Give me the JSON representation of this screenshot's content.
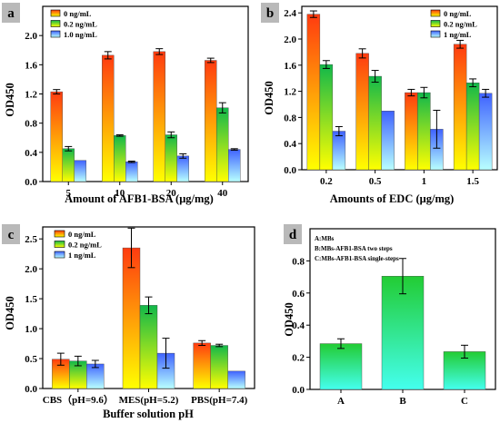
{
  "chart_data": [
    {
      "type": "bar",
      "panel_label": "a",
      "xlabel": "Amount of AFB1-BSA (μg/mg)",
      "ylabel": "OD450",
      "ylim": [
        0,
        2.4
      ],
      "yticks": [
        "0.0",
        "0.4",
        "0.8",
        "1.2",
        "1.6",
        "2.0"
      ],
      "categories": [
        "5",
        "10",
        "20",
        "40"
      ],
      "series": [
        {
          "name": "0 ng/mL",
          "values": [
            1.23,
            1.73,
            1.78,
            1.66
          ],
          "errors": [
            0.03,
            0.05,
            0.04,
            0.03
          ],
          "gradient": [
            "#ff3b10",
            "#ffff00"
          ]
        },
        {
          "name": "0.2 ng/mL",
          "values": [
            0.45,
            0.63,
            0.64,
            1.01
          ],
          "errors": [
            0.03,
            0.01,
            0.04,
            0.07
          ],
          "gradient": [
            "#11b84a",
            "#ffff00"
          ]
        },
        {
          "name": "1.0 ng/mL",
          "values": [
            0.29,
            0.27,
            0.35,
            0.44
          ],
          "errors": [
            0.0,
            0.01,
            0.03,
            0.01
          ],
          "gradient": [
            "#3f62ff",
            "#b8ffff"
          ]
        }
      ],
      "legend": "top-left"
    },
    {
      "type": "bar",
      "panel_label": "b",
      "xlabel": "Amounts of EDC (μg/mg)",
      "ylabel": "OD450",
      "ylim": [
        0,
        2.5
      ],
      "yticks": [
        "0.0",
        "0.4",
        "0.8",
        "1.2",
        "1.6",
        "2.0",
        "2.4"
      ],
      "categories": [
        "0.2",
        "0.5",
        "1",
        "1.5"
      ],
      "series": [
        {
          "name": "0 ng/mL",
          "values": [
            2.38,
            1.78,
            1.18,
            1.92
          ],
          "errors": [
            0.05,
            0.07,
            0.05,
            0.06
          ],
          "gradient": [
            "#ff3b10",
            "#ffff00"
          ]
        },
        {
          "name": "0.2 ng/mL",
          "values": [
            1.61,
            1.43,
            1.18,
            1.33
          ],
          "errors": [
            0.06,
            0.09,
            0.08,
            0.06
          ],
          "gradient": [
            "#11b84a",
            "#ffff00"
          ]
        },
        {
          "name": "1 ng/mL",
          "values": [
            0.59,
            0.9,
            0.62,
            1.17
          ],
          "errors": [
            0.07,
            0.0,
            0.29,
            0.06
          ],
          "gradient": [
            "#3f62ff",
            "#b8ffff"
          ]
        }
      ],
      "legend": "top-right"
    },
    {
      "type": "bar",
      "panel_label": "c",
      "xlabel": "Buffer solution pH",
      "ylabel": "OD450",
      "ylim": [
        0,
        2.7
      ],
      "yticks": [
        "0.0",
        "0.5",
        "1.0",
        "1.5",
        "2.0",
        "2.5"
      ],
      "categories": [
        "CBS（pH=9.6）",
        "MES(pH=5.2)",
        "PBS(pH=7.4)"
      ],
      "series": [
        {
          "name": "0 ng/mL",
          "values": [
            0.49,
            2.35,
            0.76
          ],
          "errors": [
            0.1,
            0.33,
            0.04
          ],
          "gradient": [
            "#ff3b10",
            "#ffff00"
          ]
        },
        {
          "name": "0.2 ng/mL",
          "values": [
            0.46,
            1.39,
            0.72
          ],
          "errors": [
            0.08,
            0.14,
            0.02
          ],
          "gradient": [
            "#11b84a",
            "#ffff00"
          ]
        },
        {
          "name": "1 ng/mL",
          "values": [
            0.41,
            0.59,
            0.29
          ],
          "errors": [
            0.06,
            0.25,
            0.0
          ],
          "gradient": [
            "#3f62ff",
            "#b8ffff"
          ]
        }
      ],
      "legend": "top-left"
    },
    {
      "type": "bar",
      "panel_label": "d",
      "xlabel": "",
      "ylabel": "OD450",
      "ylim": [
        0,
        1.0
      ],
      "yticks": [
        "0.0",
        "0.2",
        "0.4",
        "0.6",
        "0.8"
      ],
      "categories": [
        "A",
        "B",
        "C"
      ],
      "series": [
        {
          "name": "",
          "values": [
            0.285,
            0.705,
            0.235
          ],
          "errors": [
            0.03,
            0.11,
            0.04
          ],
          "gradient": [
            "#22cc33",
            "#44ffee"
          ]
        }
      ],
      "annotations": [
        "A:MBs",
        "B:MBs-AFB1-BSA two steps",
        "C:MBs-AFB1-BSA single-steps"
      ],
      "legend": "top-left"
    }
  ]
}
